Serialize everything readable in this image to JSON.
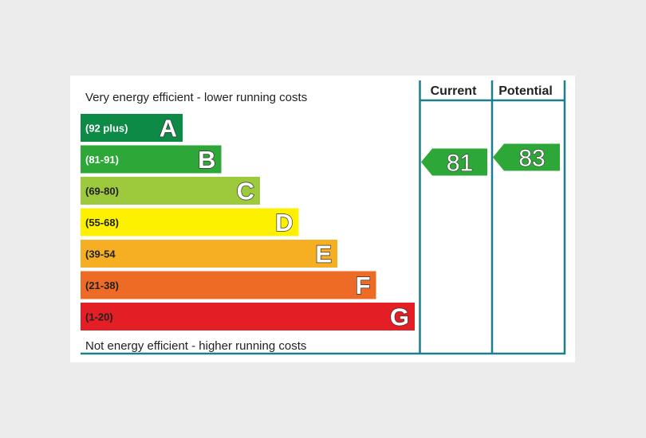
{
  "chart_data": {
    "type": "bar",
    "top_caption": "Very energy efficient - lower running costs",
    "bottom_caption": "Not energy efficient - higher running costs",
    "columns": {
      "current": "Current",
      "potential": "Potential"
    },
    "bands": [
      {
        "letter": "A",
        "range": "(92 plus)",
        "min": 92,
        "max": 100,
        "color": "#0e8a47",
        "label_color": "#ffffff"
      },
      {
        "letter": "B",
        "range": "(81-91)",
        "min": 81,
        "max": 91,
        "color": "#2da838",
        "label_color": "#ffffff"
      },
      {
        "letter": "C",
        "range": "(69-80)",
        "min": 69,
        "max": 80,
        "color": "#9dc93d",
        "label_color": "#222222"
      },
      {
        "letter": "D",
        "range": "(55-68)",
        "min": 55,
        "max": 68,
        "color": "#fef100",
        "label_color": "#222222"
      },
      {
        "letter": "E",
        "range": "(39-54",
        "min": 39,
        "max": 54,
        "color": "#f6af22",
        "label_color": "#222222"
      },
      {
        "letter": "F",
        "range": "(21-38)",
        "min": 21,
        "max": 38,
        "color": "#ee6b25",
        "label_color": "#222222"
      },
      {
        "letter": "G",
        "range": "(1-20)",
        "min": 1,
        "max": 20,
        "color": "#e31e25",
        "label_color": "#222222"
      }
    ],
    "current": {
      "value": "81",
      "band": "B",
      "color": "#2da838"
    },
    "potential": {
      "value": "83",
      "band": "B",
      "color": "#2da838"
    },
    "frame_color": "#1b7f8e"
  }
}
